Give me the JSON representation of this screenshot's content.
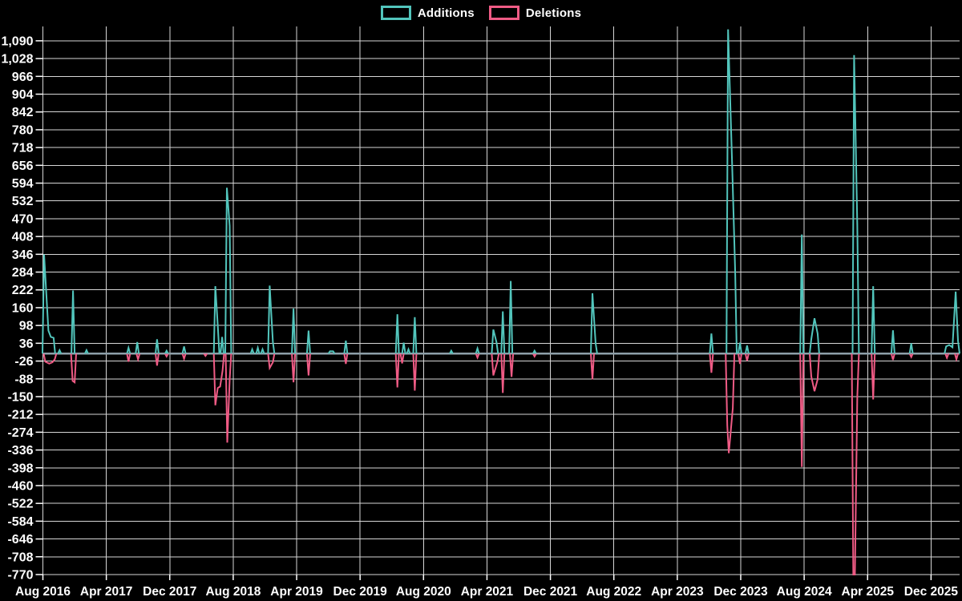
{
  "legend": {
    "items": [
      {
        "label": "Additions",
        "color": "#52c5bc"
      },
      {
        "label": "Deletions",
        "color": "#ef5b85"
      }
    ]
  },
  "colors": {
    "background": "#000000",
    "grid": "#d6d6d6",
    "zero_line": "#8d9fa9",
    "additions": "#52c5bc",
    "deletions": "#ef5b85",
    "text": "#ffffff"
  },
  "chart_data": {
    "type": "line",
    "title": "",
    "xlabel": "",
    "ylabel": "",
    "grid": true,
    "legend_position": "top-center",
    "y_axis": {
      "min": -770,
      "max": 1090,
      "tick_step": 62,
      "plot_value_top": 1140,
      "tick_labels": [
        "1,090",
        "1,028",
        "966",
        "904",
        "842",
        "780",
        "718",
        "656",
        "594",
        "532",
        "470",
        "408",
        "346",
        "284",
        "222",
        "160",
        "98",
        "36",
        "-26",
        "-88",
        "-150",
        "-212",
        "-274",
        "-336",
        "-398",
        "-460",
        "-522",
        "-584",
        "-646",
        "-708",
        "-770"
      ]
    },
    "x_axis": {
      "start_label": "Aug 2016",
      "tick_interval_months": 8,
      "gridline_interval_months": 8,
      "months_span": 115.6,
      "tick_labels": [
        "Aug 2016",
        "Apr 2017",
        "Dec 2017",
        "Aug 2018",
        "Apr 2019",
        "Dec 2019",
        "Aug 2020",
        "Apr 2021",
        "Dec 2021",
        "Aug 2022",
        "Apr 2023",
        "Dec 2023",
        "Aug 2024",
        "Apr 2025",
        "Dec 2025"
      ]
    },
    "series": [
      {
        "name": "Additions",
        "color": "#52c5bc",
        "baseline": 0,
        "points_month_value": [
          [
            0.15,
            345
          ],
          [
            0.7,
            80
          ],
          [
            1.0,
            58
          ],
          [
            1.35,
            55
          ],
          [
            2.1,
            12
          ],
          [
            3.8,
            220
          ],
          [
            5.5,
            12
          ],
          [
            10.8,
            20
          ],
          [
            11.9,
            40
          ],
          [
            14.4,
            50
          ],
          [
            15.6,
            10
          ],
          [
            17.8,
            25
          ],
          [
            21.75,
            235
          ],
          [
            22.05,
            100
          ],
          [
            22.6,
            58
          ],
          [
            23.2,
            578
          ],
          [
            23.55,
            445
          ],
          [
            26.4,
            15
          ],
          [
            27.1,
            20
          ],
          [
            27.7,
            15
          ],
          [
            28.6,
            237
          ],
          [
            29.0,
            40
          ],
          [
            31.6,
            157
          ],
          [
            33.5,
            80
          ],
          [
            36.2,
            8
          ],
          [
            36.6,
            8
          ],
          [
            38.2,
            45
          ],
          [
            44.7,
            137
          ],
          [
            45.5,
            38
          ],
          [
            46.1,
            15
          ],
          [
            46.9,
            127
          ],
          [
            51.5,
            10
          ],
          [
            54.8,
            18
          ],
          [
            56.8,
            84
          ],
          [
            57.2,
            40
          ],
          [
            58.0,
            147
          ],
          [
            59.0,
            253
          ],
          [
            62.0,
            10
          ],
          [
            69.3,
            210
          ],
          [
            69.7,
            35
          ],
          [
            84.3,
            70
          ],
          [
            86.4,
            1130
          ],
          [
            86.9,
            675
          ],
          [
            87.3,
            282
          ],
          [
            87.9,
            38
          ],
          [
            88.8,
            28
          ],
          [
            95.7,
            415
          ],
          [
            96.9,
            50
          ],
          [
            97.3,
            123
          ],
          [
            97.7,
            70
          ],
          [
            102.3,
            1040
          ],
          [
            102.7,
            445
          ],
          [
            104.7,
            235
          ],
          [
            107.2,
            81
          ],
          [
            109.5,
            36
          ],
          [
            113.9,
            25
          ],
          [
            114.3,
            30
          ],
          [
            114.7,
            22
          ],
          [
            115.1,
            216
          ],
          [
            115.4,
            45
          ]
        ]
      },
      {
        "name": "Deletions",
        "color": "#ef5b85",
        "baseline": 0,
        "points_month_value": [
          [
            0.3,
            -28
          ],
          [
            0.8,
            -35
          ],
          [
            1.2,
            -30
          ],
          [
            1.5,
            -20
          ],
          [
            3.75,
            -95
          ],
          [
            4.0,
            -100
          ],
          [
            10.8,
            -28
          ],
          [
            12.0,
            -20
          ],
          [
            14.4,
            -42
          ],
          [
            15.6,
            -10
          ],
          [
            17.8,
            -18
          ],
          [
            20.5,
            -8
          ],
          [
            21.75,
            -180
          ],
          [
            22.05,
            -120
          ],
          [
            22.35,
            -115
          ],
          [
            22.65,
            -60
          ],
          [
            23.25,
            -310
          ],
          [
            23.55,
            -90
          ],
          [
            28.6,
            -50
          ],
          [
            29.0,
            -30
          ],
          [
            31.6,
            -100
          ],
          [
            33.5,
            -76
          ],
          [
            38.2,
            -36
          ],
          [
            44.7,
            -118
          ],
          [
            45.3,
            -34
          ],
          [
            46.9,
            -129
          ],
          [
            54.8,
            -14
          ],
          [
            56.8,
            -76
          ],
          [
            57.3,
            -30
          ],
          [
            58.0,
            -137
          ],
          [
            59.1,
            -81
          ],
          [
            62.0,
            -10
          ],
          [
            69.3,
            -90
          ],
          [
            84.3,
            -67
          ],
          [
            86.3,
            -250
          ],
          [
            86.5,
            -347
          ],
          [
            87.0,
            -190
          ],
          [
            87.9,
            -36
          ],
          [
            88.8,
            -25
          ],
          [
            95.7,
            -395
          ],
          [
            96.9,
            -80
          ],
          [
            97.3,
            -131
          ],
          [
            97.7,
            -90
          ],
          [
            102.2,
            -770
          ],
          [
            102.4,
            -770
          ],
          [
            102.7,
            -150
          ],
          [
            104.7,
            -160
          ],
          [
            107.2,
            -22
          ],
          [
            109.5,
            -12
          ],
          [
            114.0,
            -15
          ],
          [
            115.2,
            -20
          ]
        ]
      }
    ]
  }
}
